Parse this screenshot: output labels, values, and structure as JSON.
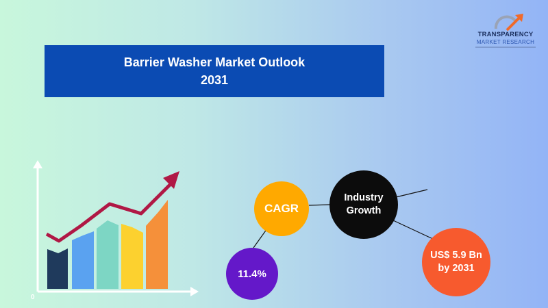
{
  "title": {
    "line1": "Barrier Washer Market Outlook",
    "line2": "2031"
  },
  "logo": {
    "name": "TRANSPARENCY",
    "sub": "MARKET RESEARCH"
  },
  "chart": {
    "axis_origin_label": "0",
    "bar_colors": [
      "#1f3a5c",
      "#5aa2f0",
      "#7dd6c4",
      "#fcd12f",
      "#f5903a"
    ],
    "trend_color": "#b01845"
  },
  "bubbles": {
    "cagr_label": "CAGR",
    "industry_line1": "Industry",
    "industry_line2": "Growth",
    "cagr_value": "11.4%",
    "market_line1": "US$ 5.9 Bn",
    "market_line2": "by 2031"
  },
  "colors": {
    "banner": "#0b4bb3",
    "cagr": "#ffa900",
    "industry": "#0c0c0c",
    "value": "#6418c9",
    "market": "#f75a2e"
  }
}
